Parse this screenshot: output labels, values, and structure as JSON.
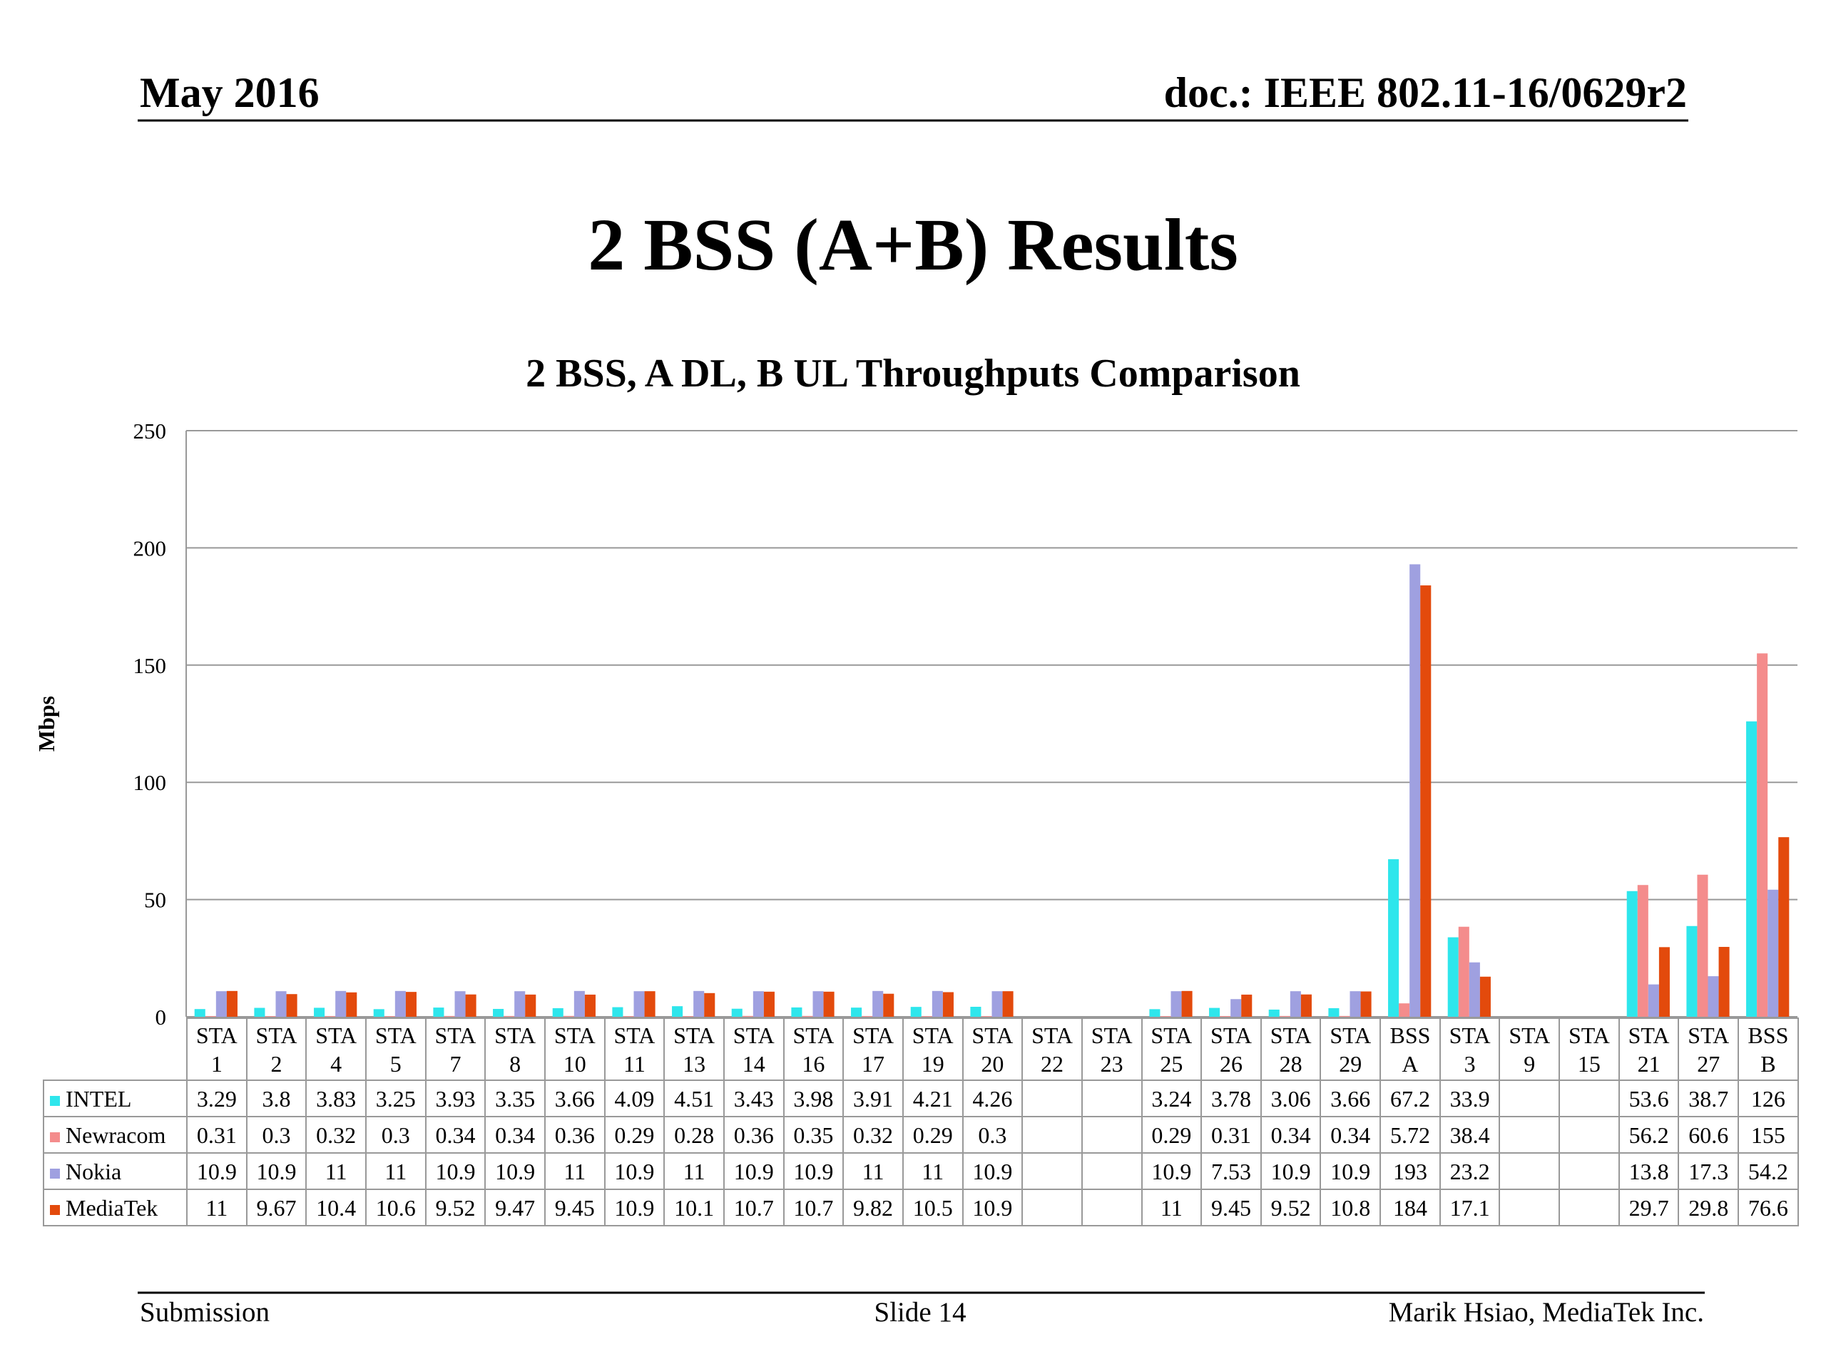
{
  "header": {
    "left": "May 2016",
    "right": "doc.: IEEE 802.11-16/0629r2"
  },
  "title": "2 BSS (A+B) Results",
  "chart_data": {
    "type": "bar",
    "title": "2 BSS, A DL, B UL Throughputs Comparison",
    "ylabel": "Mbps",
    "categories": [
      "STA 1",
      "STA 2",
      "STA 4",
      "STA 5",
      "STA 7",
      "STA 8",
      "STA 10",
      "STA 11",
      "STA 13",
      "STA 14",
      "STA 16",
      "STA 17",
      "STA 19",
      "STA 20",
      "STA 22",
      "STA 23",
      "STA 25",
      "STA 26",
      "STA 28",
      "STA 29",
      "BSS A",
      "STA 3",
      "STA 9",
      "STA 15",
      "STA 21",
      "STA 27",
      "BSS B"
    ],
    "series": [
      {
        "name": "INTEL",
        "color": "#2ee6ec",
        "values": [
          3.29,
          3.8,
          3.83,
          3.25,
          3.93,
          3.35,
          3.66,
          4.09,
          4.51,
          3.43,
          3.98,
          3.91,
          4.21,
          4.26,
          null,
          null,
          3.24,
          3.78,
          3.06,
          3.66,
          67.2,
          33.9,
          null,
          null,
          53.6,
          38.7,
          126
        ]
      },
      {
        "name": "Newracom",
        "color": "#f48c8c",
        "values": [
          0.31,
          0.3,
          0.32,
          0.3,
          0.34,
          0.34,
          0.36,
          0.29,
          0.28,
          0.36,
          0.35,
          0.32,
          0.29,
          0.3,
          null,
          null,
          0.29,
          0.31,
          0.34,
          0.34,
          5.72,
          38.4,
          null,
          null,
          56.2,
          60.6,
          155
        ]
      },
      {
        "name": "Nokia",
        "color": "#9fa0e0",
        "values": [
          10.9,
          10.9,
          11,
          11,
          10.9,
          10.9,
          11,
          10.9,
          11,
          10.9,
          10.9,
          11,
          11,
          10.9,
          null,
          null,
          10.9,
          7.53,
          10.9,
          10.9,
          193,
          23.2,
          null,
          null,
          13.8,
          17.3,
          54.2
        ]
      },
      {
        "name": "MediaTek",
        "color": "#e34a0c",
        "values": [
          11,
          9.67,
          10.4,
          10.6,
          9.52,
          9.47,
          9.45,
          10.9,
          10.1,
          10.7,
          10.7,
          9.82,
          10.5,
          10.9,
          null,
          null,
          11,
          9.45,
          9.52,
          10.8,
          184,
          17.1,
          null,
          null,
          29.7,
          29.8,
          76.6
        ]
      }
    ],
    "ylim": [
      0,
      250
    ],
    "yticks": [
      0,
      50,
      100,
      150,
      200,
      250
    ],
    "grid": true
  },
  "footer": {
    "left": "Submission",
    "center": "Slide 14",
    "right": "Marik Hsiao, MediaTek Inc."
  }
}
